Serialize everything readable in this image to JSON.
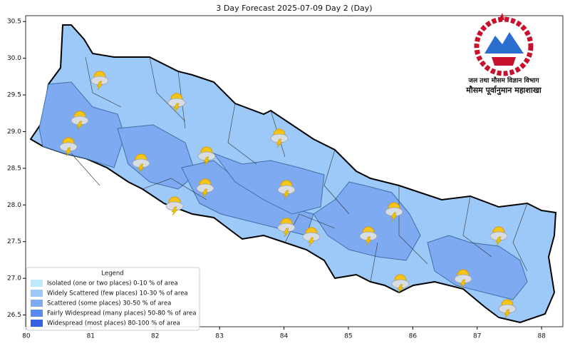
{
  "map": {
    "title": "3 Day Forecast 2025-07-09 Day 2 (Day)",
    "xlim": [
      79.99,
      88.33
    ],
    "ylim": [
      26.34,
      30.58
    ],
    "xticks": [
      80,
      81,
      82,
      83,
      84,
      85,
      86,
      87,
      88
    ],
    "yticks": [
      26.5,
      {
        "value": 27,
        "label": "27.0"
      },
      27.5,
      {
        "value": 28,
        "label": "28.0"
      },
      28.5,
      {
        "value": 29,
        "label": "29.0"
      },
      29.5,
      {
        "value": 30,
        "label": "30.0"
      },
      30.5
    ]
  },
  "logo": {
    "line1": "जल तथा मौसम विज्ञान विभाग",
    "line2": "मौसम पूर्वानुमान महाशाखा"
  },
  "legend": {
    "title": "Legend",
    "items": [
      {
        "label": "Isolated (one or two places)  0-10 % of area",
        "color": "#bde9fb"
      },
      {
        "label": "Widely Scattered (few places) 10-30 % of area",
        "color": "#9cc9f8"
      },
      {
        "label": "Scattered (some places) 30-50  % of area",
        "color": "#7eaaf2"
      },
      {
        "label": "Fairly Widespread (many places) 50-80 % of area",
        "color": "#5a8af0"
      },
      {
        "label": "Widespread (most places) 80-100 % of area",
        "color": "#3560e6"
      }
    ]
  }
}
